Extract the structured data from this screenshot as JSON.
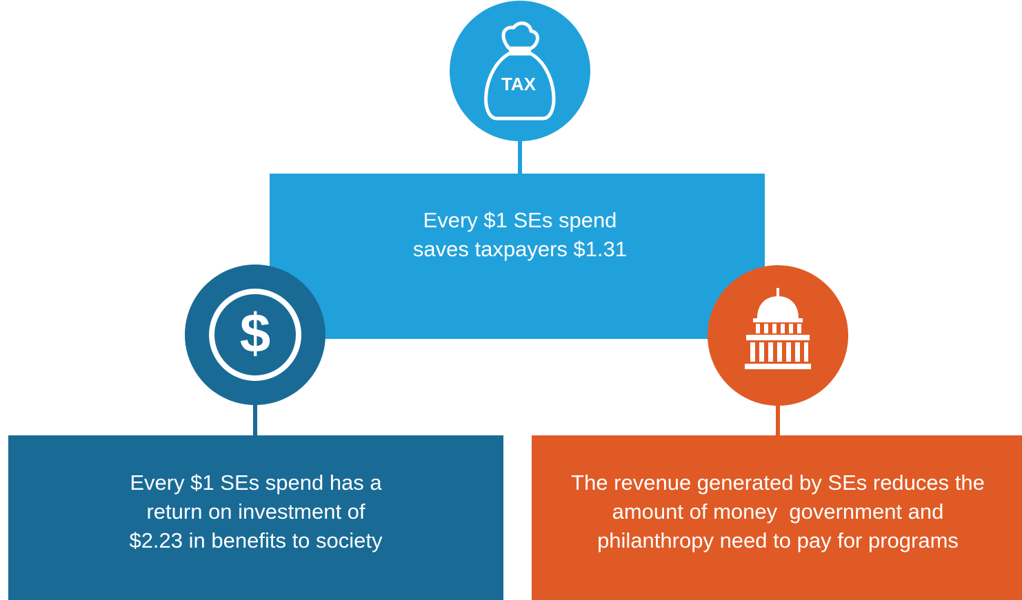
{
  "top": {
    "icon_label": "TAX",
    "lines": [
      "Every $1 SEs spend",
      "saves taxpayers $1.31"
    ]
  },
  "left": {
    "icon_label": "$",
    "lines": [
      "Every $1 SEs spend has a",
      "return on investment of",
      "$2.23 in benefits to society"
    ]
  },
  "right": {
    "lines": [
      "The revenue generated by SEs reduces the",
      "amount of money  government and",
      "philanthropy need to pay for programs"
    ]
  }
}
